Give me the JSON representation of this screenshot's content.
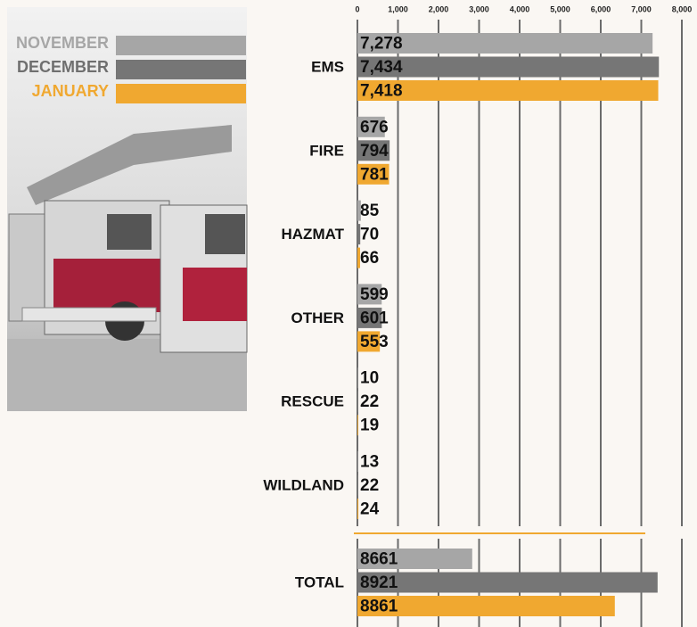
{
  "chart_data": [
    {
      "type": "bar",
      "orientation": "horizontal",
      "categories": [
        "EMS",
        "FIRE",
        "HAZMAT",
        "OTHER",
        "RESCUE",
        "WILDLAND"
      ],
      "series": [
        {
          "name": "NOVEMBER",
          "color": "#a6a6a6",
          "values": [
            7278,
            676,
            85,
            599,
            10,
            13
          ],
          "value_labels": [
            "7,278",
            "676",
            "85",
            "599",
            "10",
            "13"
          ]
        },
        {
          "name": "DECEMBER",
          "color": "#767676",
          "values": [
            7434,
            794,
            70,
            601,
            22,
            22
          ],
          "value_labels": [
            "7,434",
            "794",
            "70",
            "601",
            "22",
            "22"
          ]
        },
        {
          "name": "JANUARY",
          "color": "#f0a830",
          "values": [
            7418,
            781,
            66,
            553,
            19,
            24
          ],
          "value_labels": [
            "7,418",
            "781",
            "66",
            "553",
            "19",
            "24"
          ]
        }
      ],
      "xlim": [
        0,
        8000
      ],
      "xticks": [
        0,
        {
          "value": 1000,
          "label": "1,000"
        },
        {
          "value": 2000,
          "label": "2,000"
        },
        {
          "value": 3000,
          "label": "3,000"
        },
        {
          "value": 4000,
          "label": "4,000"
        },
        {
          "value": 5000,
          "label": "5,000"
        },
        {
          "value": 6000,
          "label": "6,000"
        },
        {
          "value": 7000,
          "label": "7,000"
        },
        {
          "value": 8000,
          "label": "8,000"
        }
      ],
      "grid": true
    },
    {
      "type": "bar",
      "orientation": "horizontal",
      "categories": [
        "TOTAL"
      ],
      "series": [
        {
          "name": "NOVEMBER",
          "color": "#a6a6a6",
          "values": [
            8661
          ]
        },
        {
          "name": "DECEMBER",
          "color": "#767676",
          "values": [
            8921
          ]
        },
        {
          "name": "JANUARY",
          "color": "#f0a830",
          "values": [
            8861
          ]
        }
      ],
      "xlim": [
        8500,
        8950
      ]
    }
  ]
}
